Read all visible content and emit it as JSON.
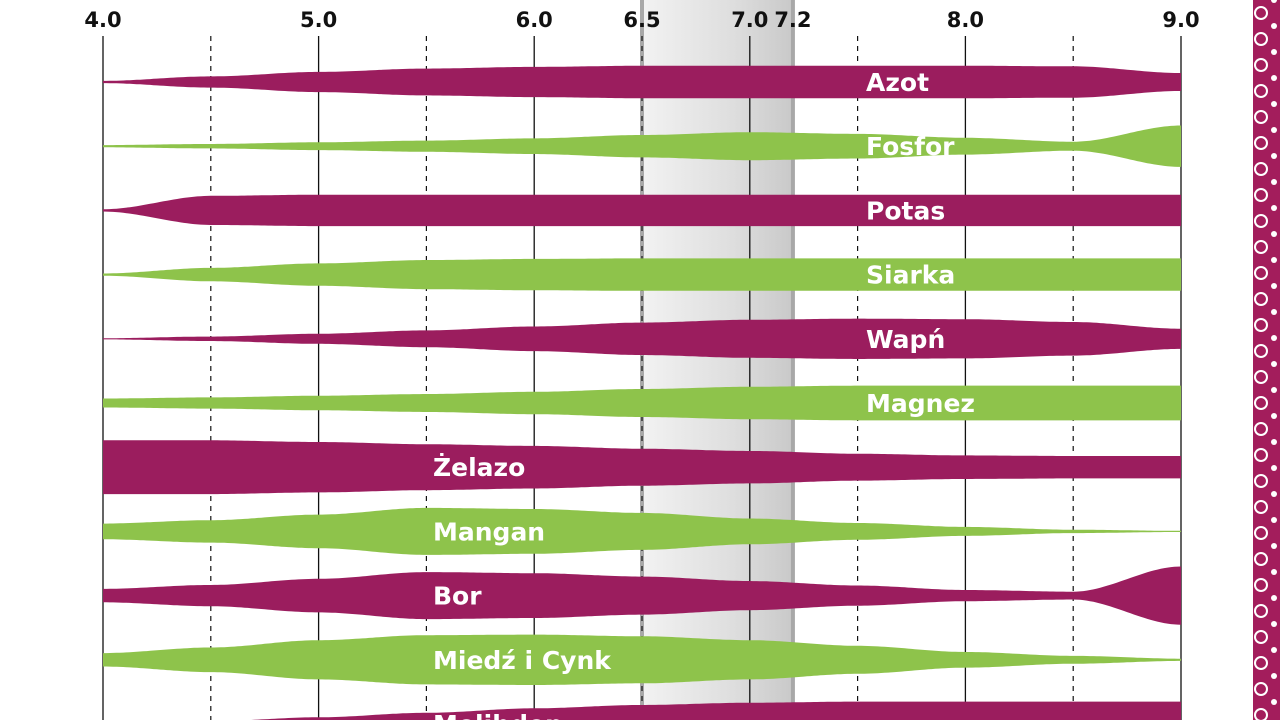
{
  "chart_data": {
    "type": "area",
    "title": "",
    "xlabel": "",
    "ylabel": "",
    "xlim": [
      4.0,
      9.0
    ],
    "x_ticks_major": [
      "4.0",
      "5.0",
      "6.0",
      "7.0",
      "8.0",
      "9.0"
    ],
    "x_ticks_highlight": [
      "6.5",
      "7.2"
    ],
    "optimal_range": [
      6.5,
      7.2
    ],
    "colors": {
      "purple": "#9b1d5e",
      "green": "#8ec34b",
      "range_band": "#dcdcdc",
      "range_line": "#a8a8a8",
      "grid": "#111111",
      "pattern_strip": "#a31d5c"
    },
    "x": [
      4.0,
      4.5,
      5.0,
      5.5,
      6.0,
      6.5,
      7.0,
      7.5,
      8.0,
      8.5,
      9.0
    ],
    "series": [
      {
        "name": "Azot",
        "color": "purple",
        "values": [
          0.02,
          0.1,
          0.18,
          0.24,
          0.27,
          0.29,
          0.29,
          0.29,
          0.29,
          0.28,
          0.16
        ]
      },
      {
        "name": "Fosfor",
        "color": "green",
        "values": [
          0.02,
          0.04,
          0.07,
          0.1,
          0.14,
          0.2,
          0.25,
          0.22,
          0.15,
          0.08,
          0.37
        ]
      },
      {
        "name": "Potas",
        "color": "purple",
        "values": [
          0.02,
          0.26,
          0.28,
          0.28,
          0.28,
          0.28,
          0.28,
          0.28,
          0.28,
          0.28,
          0.28
        ]
      },
      {
        "name": "Siarka",
        "color": "green",
        "values": [
          0.02,
          0.12,
          0.2,
          0.26,
          0.28,
          0.29,
          0.29,
          0.29,
          0.29,
          0.29,
          0.29
        ]
      },
      {
        "name": "Wapń",
        "color": "purple",
        "values": [
          0.01,
          0.04,
          0.09,
          0.15,
          0.22,
          0.29,
          0.34,
          0.36,
          0.35,
          0.3,
          0.18
        ]
      },
      {
        "name": "Magnez",
        "color": "green",
        "values": [
          0.08,
          0.1,
          0.13,
          0.16,
          0.2,
          0.25,
          0.29,
          0.31,
          0.31,
          0.31,
          0.31
        ]
      },
      {
        "name": "Żelazo",
        "color": "purple",
        "values": [
          0.48,
          0.48,
          0.45,
          0.41,
          0.38,
          0.33,
          0.29,
          0.24,
          0.21,
          0.2,
          0.2
        ]
      },
      {
        "name": "Mangan",
        "color": "green",
        "values": [
          0.14,
          0.2,
          0.3,
          0.42,
          0.4,
          0.33,
          0.23,
          0.15,
          0.08,
          0.03,
          0.01
        ]
      },
      {
        "name": "Bor",
        "color": "purple",
        "values": [
          0.12,
          0.19,
          0.3,
          0.42,
          0.4,
          0.34,
          0.26,
          0.18,
          0.1,
          0.07,
          0.52
        ]
      },
      {
        "name": "Miedź i Cynk",
        "color": "green",
        "values": [
          0.12,
          0.22,
          0.35,
          0.44,
          0.45,
          0.42,
          0.35,
          0.25,
          0.14,
          0.07,
          0.02
        ]
      },
      {
        "name": "Molibden",
        "color": "purple",
        "values": [
          0.01,
          0.05,
          0.12,
          0.2,
          0.28,
          0.34,
          0.38,
          0.4,
          0.4,
          0.4,
          0.4
        ]
      }
    ]
  }
}
